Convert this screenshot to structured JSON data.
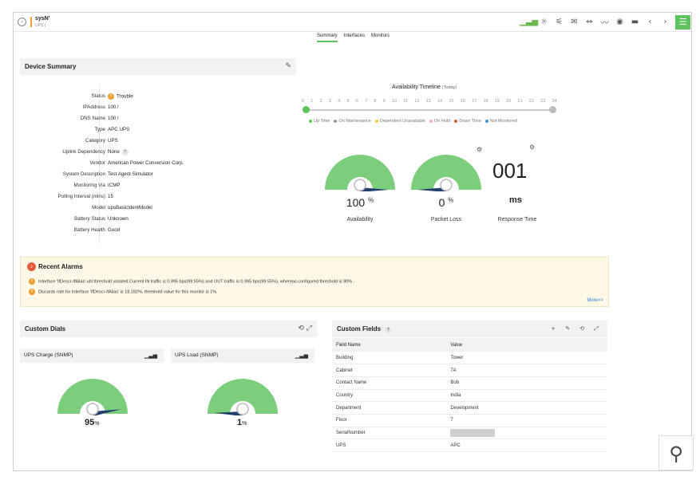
{
  "header": {
    "device_name": "sysN'",
    "device_type": "UPS |",
    "icons": [
      "chart-icon",
      "bulb-icon",
      "alert-icon",
      "mail-icon",
      "link-icon",
      "graph-icon",
      "globe-icon",
      "screen-icon",
      "prev-icon",
      "next-icon"
    ],
    "icon_glyphs": [
      "▁▃▅",
      "☼",
      "⚟",
      "✉",
      "⇔",
      "〰",
      "◉",
      "▬",
      "‹",
      "›"
    ],
    "menu_glyph": "☰",
    "back_glyph": "‹"
  },
  "tabs": [
    {
      "label": "Summary",
      "active": true
    },
    {
      "label": "Interfaces",
      "active": false
    },
    {
      "label": "Monitors",
      "active": false
    }
  ],
  "device_summary": {
    "title": "Device Summary",
    "rows": [
      {
        "label": "Status",
        "value": "Trouble"
      },
      {
        "label": "IPAddress",
        "value": "100.!"
      },
      {
        "label": "DNS Name",
        "value": "100.!"
      },
      {
        "label": "Type",
        "value": "APC UPS"
      },
      {
        "label": "Category",
        "value": "UPS"
      },
      {
        "label": "Uplink Dependency",
        "value": "None"
      },
      {
        "label": "Vendor",
        "value": "American Power Conversion Corp."
      },
      {
        "label": "System Description",
        "value": "Test Agent Simulator"
      },
      {
        "label": "Monitoring Via",
        "value": "ICMP"
      },
      {
        "label": "Polling Interval (mins)",
        "value": "15"
      },
      {
        "label": "Model",
        "value": "upsBasicIdentModel"
      },
      {
        "label": "Battery Status",
        "value": "Unknown"
      },
      {
        "label": "Battery Health",
        "value": "Good"
      }
    ],
    "status_icon_glyph": "!!",
    "help_glyph": "?"
  },
  "availability": {
    "title": "Availability Timeline",
    "subtitle": "(Today)",
    "hours": [
      "0",
      "1",
      "2",
      "3",
      "4",
      "5",
      "6",
      "7",
      "8",
      "9",
      "10",
      "11",
      "12",
      "13",
      "14",
      "15",
      "16",
      "17",
      "18",
      "19",
      "20",
      "21",
      "22",
      "23",
      "24"
    ],
    "legend": [
      {
        "label": "Up Time",
        "color": "#5fc35f"
      },
      {
        "label": "On Maintenance",
        "color": "#999999"
      },
      {
        "label": "Dependent Unavailable",
        "color": "#f2d23a"
      },
      {
        "label": "On Hold",
        "color": "#f4a6c8"
      },
      {
        "label": "Down Time",
        "color": "#e45a3c"
      },
      {
        "label": "Not Monitored",
        "color": "#4a90d9"
      }
    ]
  },
  "metrics": {
    "availability": {
      "value": "100",
      "unit": "%",
      "label": "Availability",
      "fraction": 1.0
    },
    "packet_loss": {
      "value": "0",
      "unit": "%",
      "label": "Packet Loss",
      "fraction": 0.0
    },
    "response_time": {
      "value": "001",
      "unit": "ms",
      "label": "Response Time"
    },
    "gear_glyph": "⚙"
  },
  "alarms": {
    "title": "Recent Alarms",
    "items": [
      "Interface 'IfDescr-IfAlias' util threshold violated.Current IN traffic is 0.995 bps(99.55%) and OUT traffic is 0.995 bps(99.55%), whereas configured threshold is 90% .",
      "Discards rate for Interface 'IfDescr-IfAlias' is 18.182%, threshold value for this monitor is 1%."
    ],
    "more_label": "More>>",
    "bell_glyph": "♪",
    "item_glyph": "!!"
  },
  "custom_dials": {
    "title": "Custom Dials",
    "head_glyphs": "⟲ ⤢",
    "dials": [
      {
        "name": "UPS Charge (SNMP)",
        "value": "95",
        "unit": "%",
        "fraction": 0.95
      },
      {
        "name": "UPS Load (SNMP)",
        "value": "1",
        "unit": "%",
        "fraction": 0.01
      }
    ],
    "bars_glyph": "▁▃▅"
  },
  "custom_fields": {
    "title": "Custom Fields",
    "help_glyph": "?",
    "head_glyphs": "+ ✎ ⟲ ⤢",
    "columns": [
      "Field Name",
      "Value"
    ],
    "rows": [
      {
        "field": "Building",
        "value": "Tower"
      },
      {
        "field": "Cabinet",
        "value": "7A"
      },
      {
        "field": "Contact Name",
        "value": "Bob"
      },
      {
        "field": "Country",
        "value": "India"
      },
      {
        "field": "Department",
        "value": "Development"
      },
      {
        "field": "Floor",
        "value": "7"
      },
      {
        "field": "SerialNumber",
        "value": ""
      },
      {
        "field": "UPS",
        "value": "APC"
      }
    ]
  },
  "search_glyph": "⚲",
  "edit_glyph": "✎"
}
